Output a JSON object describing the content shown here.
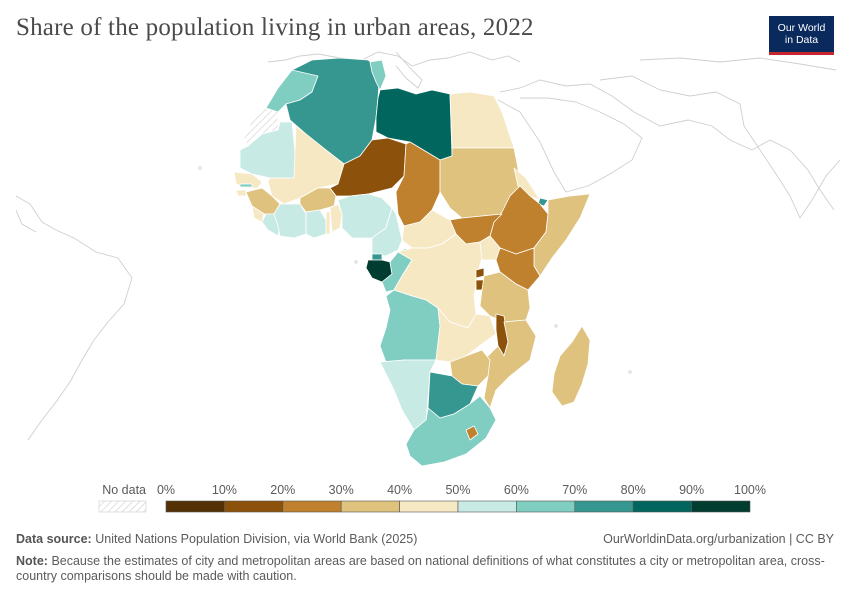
{
  "title": "Share of the population living in urban areas, 2022",
  "logo": {
    "line1": "Our World",
    "line2": "in Data"
  },
  "legend": {
    "no_data_label": "No data",
    "ticks": [
      "0%",
      "10%",
      "20%",
      "30%",
      "40%",
      "50%",
      "60%",
      "70%",
      "80%",
      "90%",
      "100%"
    ],
    "colors": [
      "#543005",
      "#8c510a",
      "#bf812d",
      "#dfc27d",
      "#f6e8c3",
      "#c7eae5",
      "#80cdc1",
      "#35978f",
      "#01665e",
      "#003c30"
    ]
  },
  "source": {
    "label": "Data source:",
    "text": "United Nations Population Division, via World Bank (2025)"
  },
  "url": "OurWorldinData.org/urbanization | CC BY",
  "note": {
    "label": "Note:",
    "text": "Because the estimates of city and metropolitan areas are based on national definitions of what constitutes a city or metropolitan area, cross-country comparisons should be made with caution."
  }
}
